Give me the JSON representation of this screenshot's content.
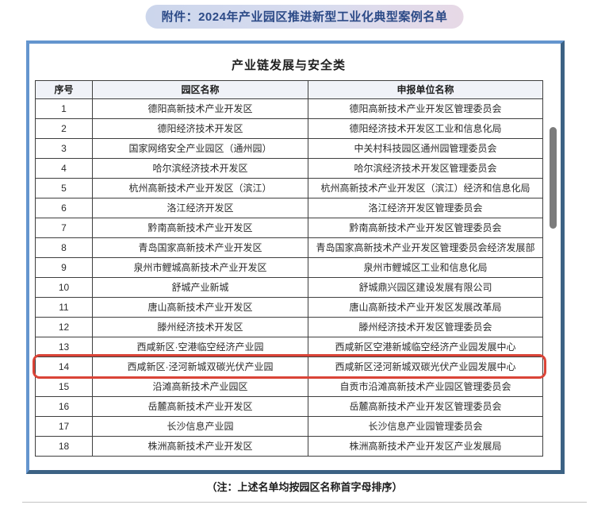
{
  "page": {
    "attachment_title": "附件：2024年产业园区推进新型工业化典型案例名单",
    "note": "（注：上述名单均按园区名称首字母排序）"
  },
  "table": {
    "title": "产业链发展与安全类",
    "columns": [
      "序号",
      "园区名称",
      "申报单位名称"
    ],
    "rows": [
      {
        "no": "1",
        "park": "德阳高新技术产业开发区",
        "unit": "德阳高新技术产业开发区管理委员会"
      },
      {
        "no": "2",
        "park": "德阳经济技术开发区",
        "unit": "德阳经济技术开发区工业和信息化局"
      },
      {
        "no": "3",
        "park": "国家网络安全产业园区（通州园）",
        "unit": "中关村科技园区通州园管理委员会"
      },
      {
        "no": "4",
        "park": "哈尔滨经济技术开发区",
        "unit": "哈尔滨经济技术开发区管理委员会"
      },
      {
        "no": "5",
        "park": "杭州高新技术产业开发区（滨江）",
        "unit": "杭州高新技术产业开发区（滨江）经济和信息化局"
      },
      {
        "no": "6",
        "park": "洛江经济开发区",
        "unit": "洛江经济开发区管理委员会"
      },
      {
        "no": "7",
        "park": "黔南高新技术产业开发区",
        "unit": "黔南高新技术产业开发区管理委员会"
      },
      {
        "no": "8",
        "park": "青岛国家高新技术产业开发区",
        "unit": "青岛国家高新技术产业开发区管理委员会经济发展部"
      },
      {
        "no": "9",
        "park": "泉州市鲤城高新技术产业开发区",
        "unit": "泉州市鲤城区工业和信息化局"
      },
      {
        "no": "10",
        "park": "舒城产业新城",
        "unit": "舒城鼎兴园区建设发展有限公司"
      },
      {
        "no": "11",
        "park": "唐山高新技术产业开发区",
        "unit": "唐山高新技术产业开发区发展改革局"
      },
      {
        "no": "12",
        "park": "滕州经济技术开发区",
        "unit": "滕州经济技术开发区管理委员会"
      },
      {
        "no": "13",
        "park": "西咸新区·空港临空经济产业园",
        "unit": "西咸新区空港新城临空经济产业园发展中心"
      },
      {
        "no": "14",
        "park": "西咸新区·泾河新城双碳光伏产业园",
        "unit": "西咸新区泾河新城双碳光伏产业园发展中心",
        "highlighted": true
      },
      {
        "no": "15",
        "park": "沿滩高新技术产业园区",
        "unit": "自贡市沿滩高新技术产业园区管理委员会"
      },
      {
        "no": "16",
        "park": "岳麓高新技术产业开发区",
        "unit": "岳麓高新技术产业开发区管理委员会"
      },
      {
        "no": "17",
        "park": "长沙信息产业园",
        "unit": "长沙信息产业园管理委员会"
      },
      {
        "no": "18",
        "park": "株洲高新技术产业开发区",
        "unit": "株洲高新技术产业开发区产业发展局"
      }
    ],
    "highlighted_row_no": "14"
  },
  "colors": {
    "highlight_red": "#da4437",
    "frame_light": "#6495ce",
    "frame_dark": "#3c6284",
    "pill_bg_left": "#ccd6ec",
    "pill_bg_right": "#e7d9e6",
    "pill_text": "#2c4a87",
    "header_bg": "#f0f2f8",
    "scrollbar_gray": "#7c7c7c"
  }
}
